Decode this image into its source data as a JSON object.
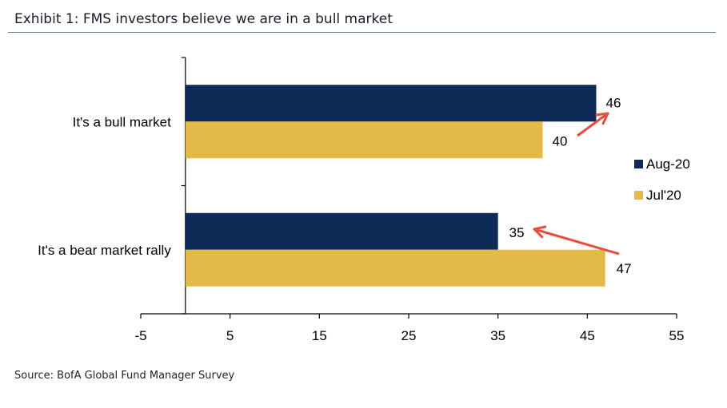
{
  "chart_data": {
    "type": "bar",
    "orientation": "horizontal",
    "title": "Exhibit 1: FMS investors believe we are in a bull market",
    "source": "Source: BofA Global Fund Manager Survey",
    "categories": [
      "It's a bull market",
      "It's a bear market rally"
    ],
    "series": [
      {
        "name": "Aug-20",
        "values": [
          46,
          35
        ],
        "color": "#0e2a56"
      },
      {
        "name": "Jul'20",
        "values": [
          40,
          47
        ],
        "color": "#e1ba48"
      }
    ],
    "data_labels": [
      [
        "46",
        "35"
      ],
      [
        "40",
        "47"
      ]
    ],
    "xlim": [
      -5,
      55
    ],
    "xticks": [
      -5,
      5,
      15,
      25,
      35,
      45,
      55
    ],
    "xtick_labels": [
      "-5",
      "5",
      "15",
      "25",
      "35",
      "45",
      "55"
    ],
    "xlabel": "",
    "ylabel": "",
    "grid": false,
    "legend_position": "right",
    "annotation_color": "#e84c3d"
  }
}
